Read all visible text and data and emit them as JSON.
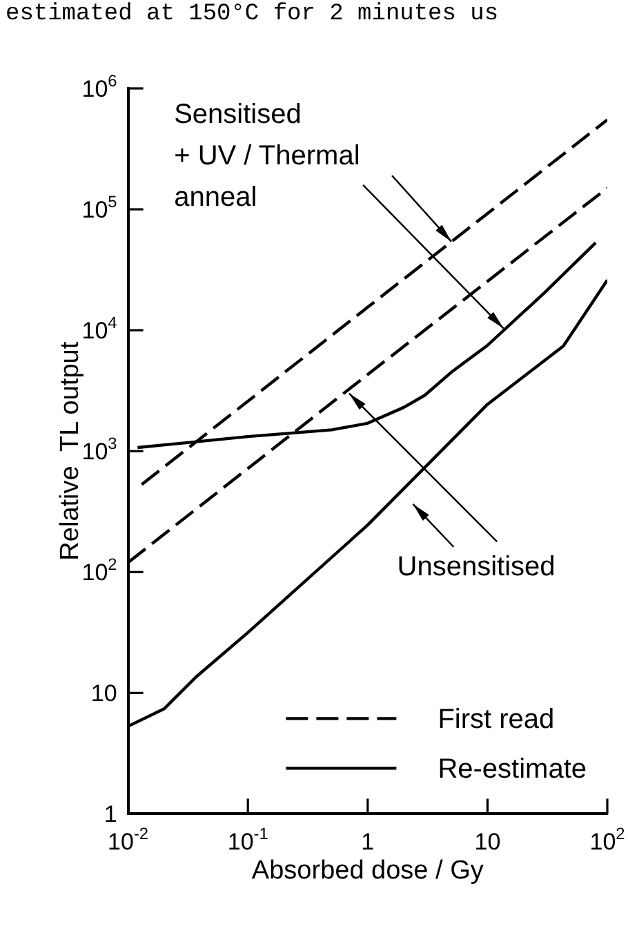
{
  "chart_data": {
    "type": "line",
    "xlabel": "Absorbed dose / Gy",
    "ylabel": "Relative  TL output",
    "log": "xy",
    "grid": false,
    "legend": "bottom right",
    "marker": "none",
    "xlim": [
      0.01,
      100
    ],
    "ylim": [
      1,
      1000000
    ],
    "xticks": [
      {
        "value": 0.01,
        "label": "10$^{-2}$"
      },
      {
        "value": 0.1,
        "label": "10$^{-1}$"
      },
      1,
      10,
      {
        "value": 100,
        "label": "10$^{2}$"
      }
    ],
    "yticks": [
      1,
      10,
      {
        "value": 100,
        "label": "10$^{2}$"
      },
      {
        "value": 1000,
        "label": "10$^{3}$"
      },
      {
        "value": 10000,
        "label": "10$^{4}$"
      },
      {
        "value": 100000,
        "label": "10$^{5}$"
      },
      {
        "value": 1000000,
        "label": "10$^{6}$"
      }
    ],
    "annotations": [
      "estimated at 150°C for 2 minutes us",
      {
        "text": "Sensitised\n+ UV / Thermal\nanneal",
        "x": 5,
        "y": 54000
      },
      {
        "text": "Unsensitised",
        "x": 0.7,
        "y": 3000
      }
    ],
    "series": [
      {
        "name": "First read",
        "color": "#000000",
        "line_style": "dashed",
        "x": [
          0.013,
          1,
          100
        ],
        "values": [
          530,
          15500,
          550000
        ]
      },
      {
        "color": "#000000",
        "line_style": "dashed",
        "x": [
          0.01,
          1,
          100
        ],
        "values": [
          120,
          4300,
          150000
        ]
      },
      {
        "name": "Re-estimate",
        "color": "#000000",
        "line_style": "solid",
        "x": [
          0.012,
          0.1,
          0.5,
          1,
          2,
          3,
          5,
          10,
          30,
          80
        ],
        "values": [
          1070,
          1320,
          1500,
          1700,
          2300,
          2900,
          4500,
          7500,
          20500,
          53000
        ]
      },
      {
        "color": "#000000",
        "line_style": "solid",
        "x": [
          0.01,
          0.02,
          0.037,
          0.1,
          1,
          10,
          43,
          100
        ],
        "values": [
          5.3,
          7.4,
          13.6,
          31.6,
          245,
          2440,
          7400,
          26000
        ]
      }
    ]
  }
}
